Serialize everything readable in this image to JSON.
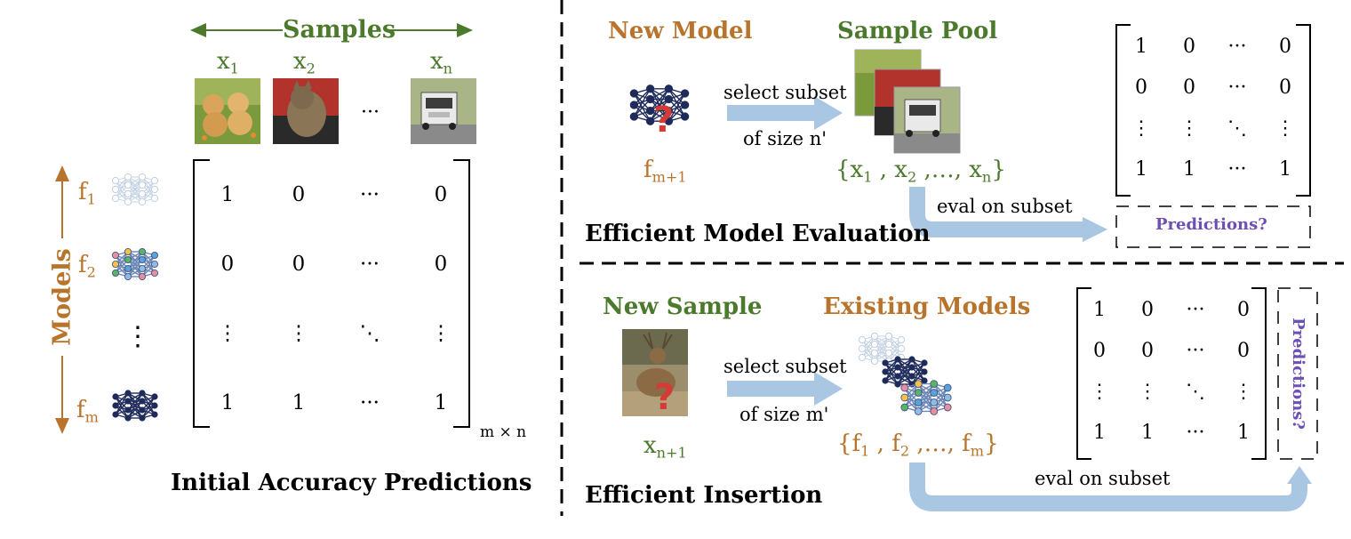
{
  "colors": {
    "green": "#4c7a2c",
    "orange": "#b8742c",
    "purple": "#6e4fb4",
    "arrow": "#a9c6e3",
    "qmark": "#d53a36"
  },
  "left": {
    "samples_label": "Samples",
    "models_label": "Models",
    "x_labels": {
      "x1": "x",
      "x1_sub": "1",
      "x2": "x",
      "x2_sub": "2",
      "xn": "x",
      "xn_sub": "n"
    },
    "f_labels": {
      "f1": "f",
      "f1_sub": "1",
      "f2": "f",
      "f2_sub": "2",
      "fm": "f",
      "fm_sub": "m"
    },
    "row_dots": "⋮",
    "col_ellipsis": "···",
    "matrix": [
      [
        "1",
        "0",
        "···",
        "0"
      ],
      [
        "0",
        "0",
        "···",
        "0"
      ],
      [
        "⋮",
        "⋮",
        "⋱",
        "⋮"
      ],
      [
        "1",
        "1",
        "···",
        "1"
      ]
    ],
    "matrix_size": "m × n",
    "caption": "Initial Accuracy Predictions",
    "images": [
      "puppies-image",
      "cat-image",
      "truck-image"
    ]
  },
  "top_right": {
    "new_model": "New Model",
    "sample_pool": "Sample Pool",
    "select_line1": "select subset",
    "select_line2": "of size n'",
    "f_label": "f",
    "f_sub": "m+1",
    "set_open": "{x",
    "set_s1": "1",
    "set_mid1": " , x",
    "set_s2": "2",
    "set_mid2": " ,…, x",
    "set_sn": "n",
    "set_close": "}",
    "eval": "eval on subset",
    "predictions": "Predictions?",
    "title": "Efficient Model Evaluation",
    "matrix": [
      [
        "1",
        "0",
        "···",
        "0"
      ],
      [
        "0",
        "0",
        "···",
        "0"
      ],
      [
        "⋮",
        "⋮",
        "⋱",
        "⋮"
      ],
      [
        "1",
        "1",
        "···",
        "1"
      ]
    ],
    "qmark": "?"
  },
  "bottom_right": {
    "new_sample": "New Sample",
    "existing_models": "Existing Models",
    "select_line1": "select subset",
    "select_line2": "of size m'",
    "x_label": "x",
    "x_sub": "n+1",
    "set_open": "{f",
    "set_s1": "1",
    "set_mid1": " , f",
    "set_s2": "2",
    "set_mid2": " ,…, f",
    "set_sm": "m",
    "set_close": "}",
    "eval": "eval on subset",
    "predictions": "Predictions?",
    "title": "Efficient Insertion",
    "matrix": [
      [
        "1",
        "0",
        "···",
        "0"
      ],
      [
        "0",
        "0",
        "···",
        "0"
      ],
      [
        "⋮",
        "⋮",
        "⋱",
        "⋮"
      ],
      [
        "1",
        "1",
        "···",
        "1"
      ]
    ],
    "qmark": "?",
    "image": "deer-image"
  }
}
